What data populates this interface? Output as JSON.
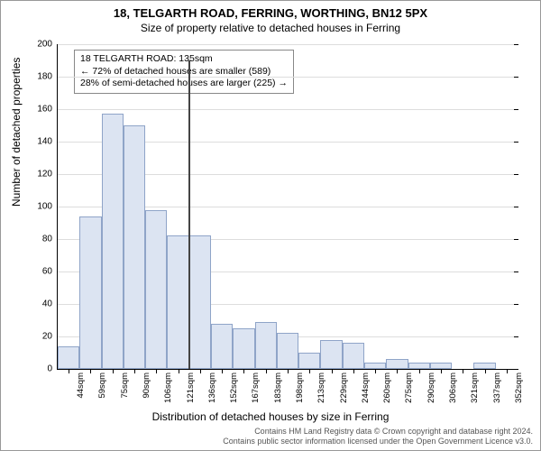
{
  "chart": {
    "type": "histogram",
    "title_line1": "18, TELGARTH ROAD, FERRING, WORTHING, BN12 5PX",
    "title_line2": "Size of property relative to detached houses in Ferring",
    "title_fontsize": 13,
    "subtitle_fontsize": 12,
    "ylabel": "Number of detached properties",
    "xlabel": "Distribution of detached houses by size in Ferring",
    "label_fontsize": 12,
    "tick_fontsize": 10,
    "background_color": "#ffffff",
    "grid_color": "#dddddd",
    "bar_fill": "#dce4f2",
    "bar_border": "#8fa4c8",
    "marker_color": "#444444",
    "ylim": [
      0,
      200
    ],
    "yticks": [
      0,
      20,
      40,
      60,
      80,
      100,
      120,
      140,
      160,
      180,
      200
    ],
    "xtick_labels": [
      "44sqm",
      "59sqm",
      "75sqm",
      "90sqm",
      "106sqm",
      "121sqm",
      "136sqm",
      "152sqm",
      "167sqm",
      "183sqm",
      "198sqm",
      "213sqm",
      "229sqm",
      "244sqm",
      "260sqm",
      "275sqm",
      "290sqm",
      "306sqm",
      "321sqm",
      "337sqm",
      "352sqm"
    ],
    "values": [
      14,
      94,
      157,
      150,
      98,
      82,
      82,
      28,
      25,
      29,
      22,
      10,
      18,
      16,
      4,
      6,
      4,
      4,
      0,
      4,
      0
    ],
    "marker_after_bin_index": 5,
    "marker_height": 190,
    "annotation": {
      "line1": "18 TELGARTH ROAD: 135sqm",
      "line2": "← 72% of detached houses are smaller (589)",
      "line3": "28% of semi-detached houses are larger (225) →",
      "fontsize": 10.5,
      "border_color": "#888888"
    }
  },
  "footer": {
    "line1": "Contains HM Land Registry data © Crown copyright and database right 2024.",
    "line2": "Contains public sector information licensed under the Open Government Licence v3.0."
  }
}
